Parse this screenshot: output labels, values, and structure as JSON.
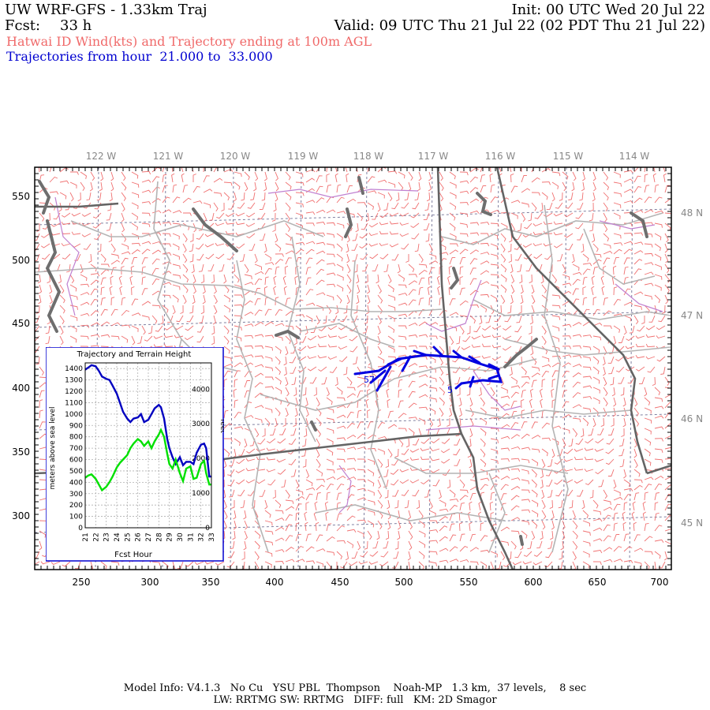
{
  "header": {
    "title": "UW WRF-GFS - 1.33km Traj",
    "init": "Init: 00 UTC Wed 20 Jul 22",
    "fcst_label": "Fcst:",
    "fcst_value": "33 h",
    "valid": "Valid: 09 UTC Thu 21 Jul 22 (02 PDT Thu 21 Jul 22)",
    "subtitle": "Hatwai ID Wind(kts) and Trajectory ending at 100m AGL",
    "traj_range": "Trajectories from hour  21.000 to  33.000"
  },
  "map": {
    "lon_labels": [
      "122 W",
      "121 W",
      "120 W",
      "119 W",
      "118 W",
      "117 W",
      "116 W",
      "115 W",
      "114 W"
    ],
    "lat_labels": [
      "48 N",
      "47 N",
      "46 N",
      "45 N"
    ],
    "x_ticks": [
      "250",
      "300",
      "350",
      "400",
      "450",
      "500",
      "550",
      "600",
      "650",
      "700"
    ],
    "y_ticks": [
      "550",
      "500",
      "450",
      "400",
      "350",
      "300"
    ],
    "traj_markers": [
      "57",
      "5"
    ],
    "colors": {
      "wind_barbs": "#f07070",
      "trajectory": "#0000e0",
      "borders": "#b0b0b0",
      "state_lines": "#606060",
      "rivers": "#b070c0"
    }
  },
  "inset": {
    "title": "Trajectory and Terrain Height",
    "ylabel_left": "meters above sea level",
    "ylabel_right": "feet",
    "xlabel": "Fcst Hour",
    "left_ticks": [
      "1400",
      "1300",
      "1200",
      "1100",
      "1000",
      "900",
      "800",
      "700",
      "600",
      "500",
      "400",
      "300",
      "200",
      "100",
      "0"
    ],
    "right_ticks": [
      "4000",
      "3000",
      "2000",
      "1000",
      "0"
    ],
    "x_ticks": [
      "21",
      "22",
      "23",
      "24",
      "25",
      "26",
      "27",
      "28",
      "29",
      "30",
      "31",
      "32",
      "33"
    ]
  },
  "chart_data": {
    "type": "line",
    "title": "Trajectory and Terrain Height",
    "xlabel": "Fcst Hour",
    "ylabel": "meters above sea level",
    "xlim": [
      21,
      33
    ],
    "ylim": [
      0,
      1450
    ],
    "series": [
      {
        "color": "#0000c0",
        "x": [
          21,
          21.3,
          21.6,
          22,
          22.3,
          22.6,
          23,
          23.3,
          23.6,
          24,
          24.3,
          24.6,
          25,
          25.3,
          25.6,
          26,
          26.3,
          26.6,
          27,
          27.3,
          27.6,
          28,
          28.2,
          28.5,
          28.8,
          29,
          29.3,
          29.6,
          30,
          30.3,
          30.6,
          31,
          31.3,
          31.6,
          32,
          32.3,
          32.5,
          32.8,
          33
        ],
        "values": [
          1390,
          1410,
          1430,
          1420,
          1380,
          1330,
          1310,
          1300,
          1250,
          1180,
          1100,
          1020,
          960,
          930,
          960,
          970,
          1000,
          930,
          950,
          1000,
          1050,
          1080,
          1060,
          960,
          780,
          700,
          620,
          560,
          620,
          550,
          580,
          580,
          560,
          660,
          730,
          740,
          700,
          450,
          450
        ]
      },
      {
        "color": "#00e000",
        "x": [
          21,
          21.3,
          21.6,
          22,
          22.3,
          22.6,
          23,
          23.3,
          23.6,
          24,
          24.3,
          24.6,
          25,
          25.3,
          25.6,
          26,
          26.3,
          26.6,
          27,
          27.3,
          27.6,
          28,
          28.2,
          28.5,
          28.8,
          29,
          29.3,
          29.6,
          30,
          30.3,
          30.6,
          31,
          31.3,
          31.6,
          32,
          32.3,
          32.5,
          32.8,
          33
        ],
        "values": [
          440,
          460,
          470,
          430,
          380,
          330,
          360,
          400,
          450,
          530,
          570,
          600,
          640,
          700,
          740,
          780,
          760,
          720,
          760,
          700,
          760,
          820,
          860,
          800,
          650,
          560,
          520,
          600,
          480,
          410,
          520,
          540,
          430,
          440,
          560,
          590,
          480,
          380,
          380
        ]
      }
    ]
  },
  "footer": {
    "line1": "Model Info: V4.1.3   No Cu   YSU PBL  Thompson    Noah-MP   1.3 km,  37 levels,    8 sec",
    "line2": "LW: RRTMG SW: RRTMG   DIFF: full   KM: 2D Smagor"
  }
}
